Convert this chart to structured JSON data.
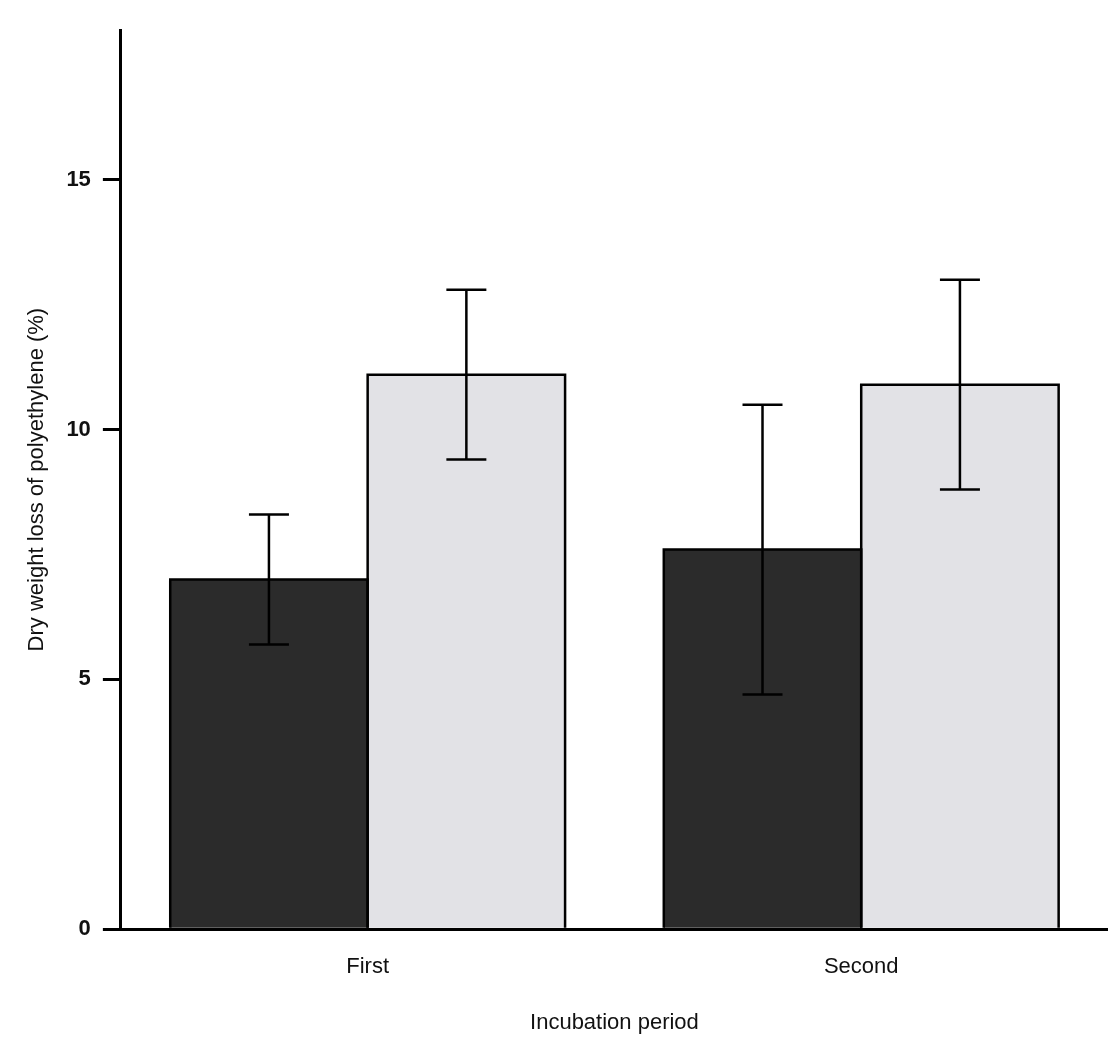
{
  "chart_data": {
    "type": "bar",
    "xlabel": "Incubation period",
    "ylabel": "Dry weight loss of polyethylene (%)",
    "categories": [
      "First",
      "Second"
    ],
    "series": [
      {
        "color": "#2b2b2b",
        "values": [
          7.0,
          7.6
        ],
        "errors": [
          1.3,
          2.9
        ]
      },
      {
        "color": "#e2e2e6",
        "values": [
          11.1,
          10.9
        ],
        "errors": [
          1.7,
          2.1
        ]
      }
    ],
    "ylim": [
      0,
      18
    ],
    "yticks": [
      0,
      5,
      10,
      15
    ],
    "grid": false,
    "legend": false
  }
}
